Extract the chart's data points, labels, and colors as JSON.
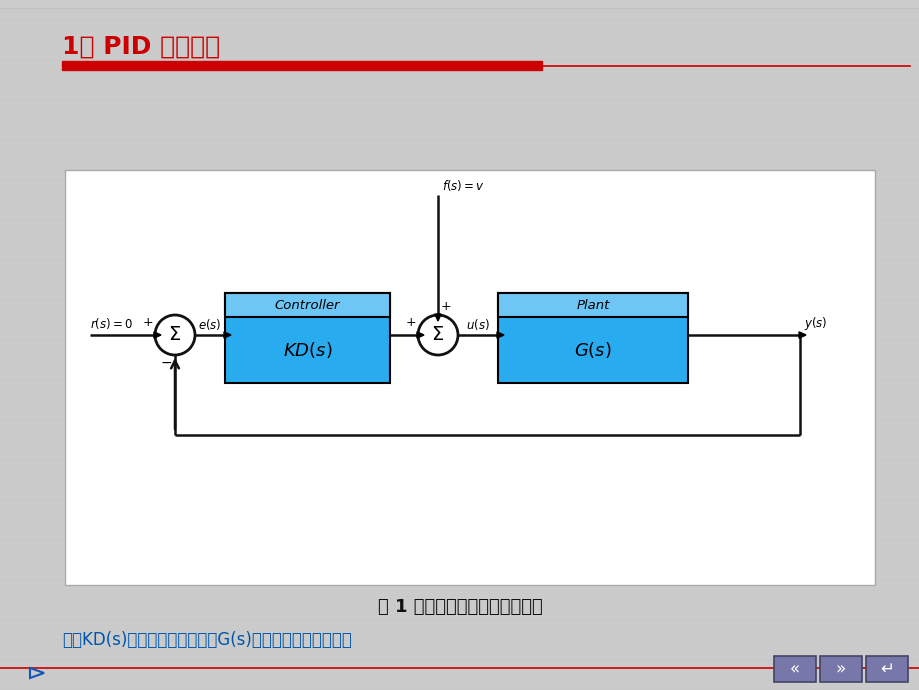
{
  "title": "1、 PID 控制分析",
  "title_color": "#CC0000",
  "bg_color": "#CBCBCB",
  "content_bg": "#F0F0EC",
  "caption": "图 1 直线一级倒立摯闭环系统图",
  "caption_color": "#111111",
  "bottom_text": "图中KD(s)是控制器传递函数，G(s)是被控对象传递函数。",
  "bottom_text_color": "#0055AA",
  "box_fill": "#29ABF0",
  "box_edge": "#000000",
  "header_fill": "#6EC6F5",
  "red_bar_color": "#CC0000",
  "red_line_color": "#CC0000",
  "diag_bg": "#FFFFFF",
  "stripe_color": "#BEBEBE",
  "nav_bg": "#7777AA",
  "nav_edge": "#444466",
  "triangle_color": "#1155BB",
  "line_color": "#111111",
  "signal_label_color": "#111111"
}
